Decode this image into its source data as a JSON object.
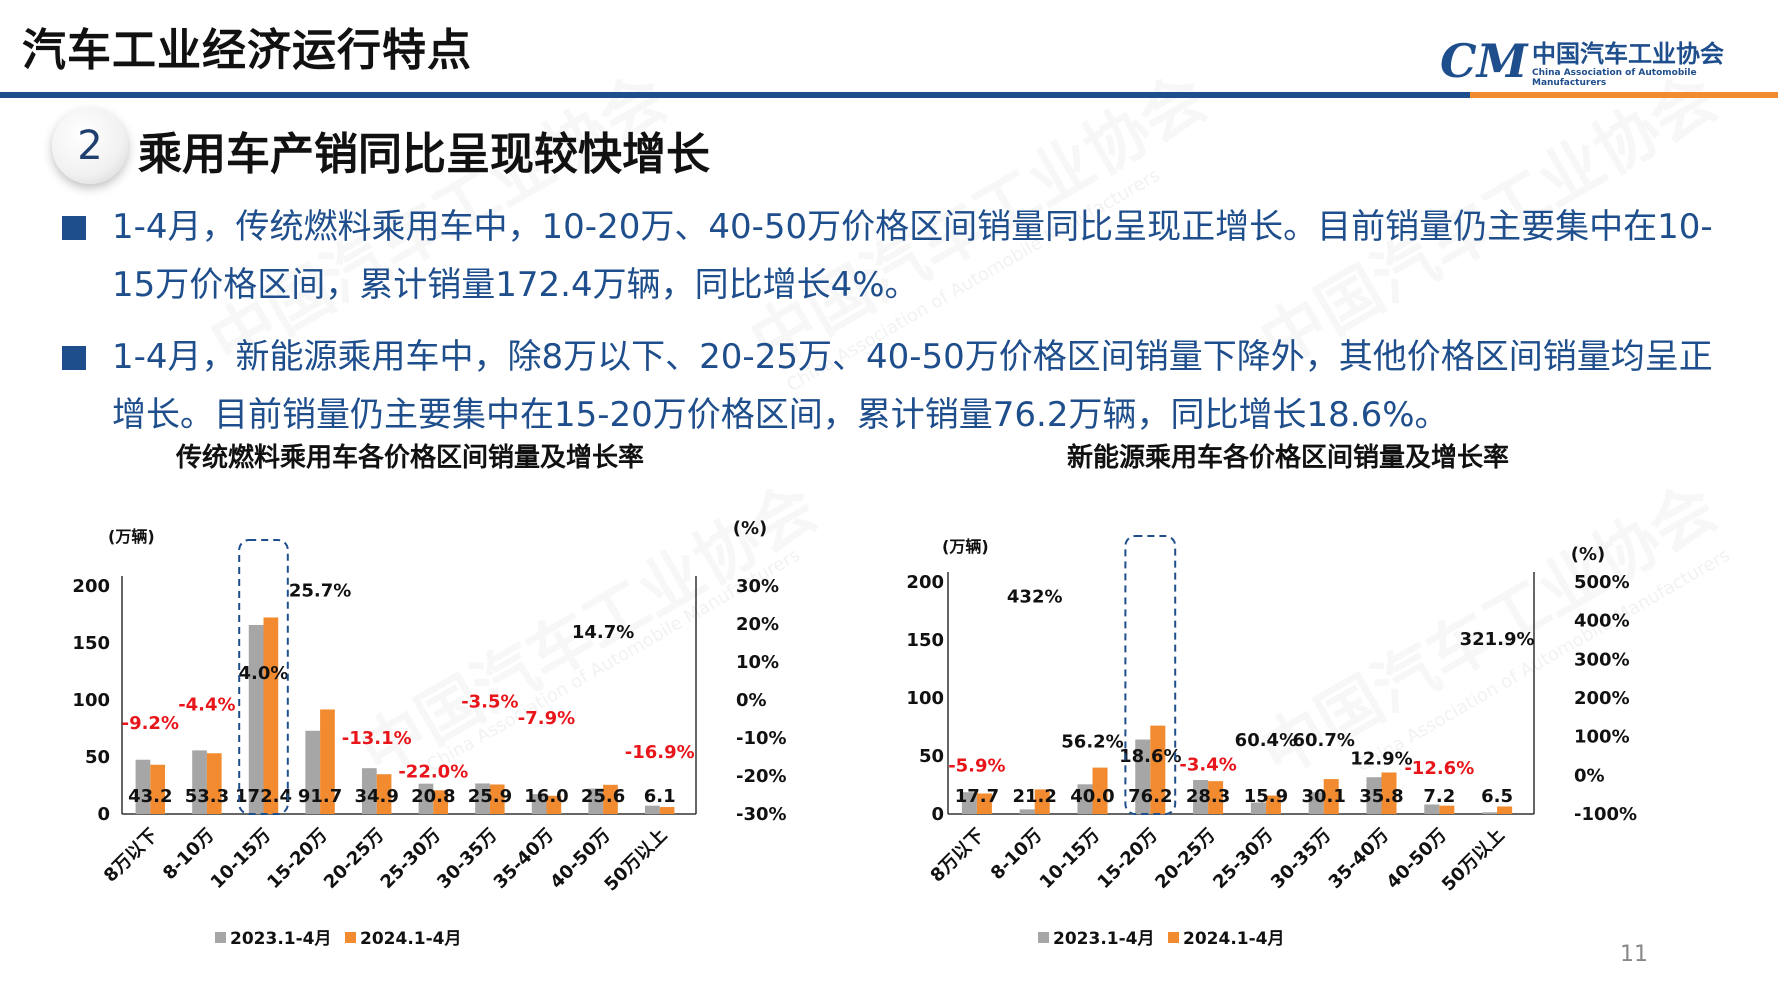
{
  "header": {
    "title": "汽车工业经济运行特点",
    "logo_mark": "CM",
    "logo_cn": "中国汽车工业协会",
    "logo_en": "China Association of Automobile Manufacturers"
  },
  "section": {
    "number": "2",
    "title": "乘用车产销同比呈现较快增长"
  },
  "bullets": [
    "1-4月，传统燃料乘用车中，10-20万、40-50万价格区间销量同比呈现正增长。目前销量仍主要集中在10-15万价格区间，累计销量172.4万辆，同比增长4%。",
    "1-4月，新能源乘用车中，除8万以下、20-25万、40-50万价格区间销量下降外，其他价格区间销量均呈正增长。目前销量仍主要集中在15-20万价格区间，累计销量76.2万辆，同比增长18.6%。"
  ],
  "page_number": "11",
  "colors": {
    "series2023": "#a6a6a6",
    "series2024": "#f28b30",
    "negative": "#e8161b",
    "positive": "#111111",
    "accent": "#1f4e8c"
  },
  "chart_data": [
    {
      "type": "bar",
      "title": "传统燃料乘用车各价格区间销量及增长率",
      "ylabel_left": "(万辆)",
      "ylabel_right": "(%)",
      "categories": [
        "8万以下",
        "8-10万",
        "10-15万",
        "15-20万",
        "20-25万",
        "25-30万",
        "30-35万",
        "35-40万",
        "40-50万",
        "50万以上"
      ],
      "series": [
        {
          "name": "2023.1-4月",
          "values": [
            47.6,
            55.8,
            165.8,
            73.0,
            40.2,
            26.6,
            26.8,
            17.4,
            22.3,
            7.3
          ]
        },
        {
          "name": "2024.1-4月",
          "values": [
            43.2,
            53.3,
            172.4,
            91.7,
            34.9,
            20.8,
            25.9,
            16.0,
            25.6,
            6.1
          ]
        }
      ],
      "value_labels": [
        "43.2",
        "53.3",
        "172.4",
        "91.7",
        "34.9",
        "20.8",
        "25.9",
        "16.0",
        "25.6",
        "6.1"
      ],
      "growth_rates": [
        -9.2,
        -4.4,
        4.0,
        25.7,
        -13.1,
        -22.0,
        -3.5,
        -7.9,
        14.7,
        -16.9
      ],
      "growth_labels": [
        "-9.2%",
        "-4.4%",
        "4.0%",
        "25.7%",
        "-13.1%",
        "-22.0%",
        "-3.5%",
        "-7.9%",
        "14.7%",
        "-16.9%"
      ],
      "y_ticks": [
        "200",
        "150",
        "100",
        "50",
        "0"
      ],
      "y2_ticks": [
        "30%",
        "20%",
        "10%",
        "0%",
        "-10%",
        "-20%",
        "-30%"
      ],
      "ylim": [
        0,
        200
      ],
      "y2lim": [
        -30,
        30
      ],
      "highlight_index": 2,
      "legend_position": "bottom"
    },
    {
      "type": "bar",
      "title": "新能源乘用车各价格区间销量及增长率",
      "ylabel_left": "(万辆)",
      "ylabel_right": "(%)",
      "categories": [
        "8万以下",
        "8-10万",
        "10-15万",
        "15-20万",
        "20-25万",
        "25-30万",
        "30-35万",
        "35-40万",
        "40-50万",
        "50万以上"
      ],
      "series": [
        {
          "name": "2023.1-4月",
          "values": [
            18.8,
            4.0,
            25.6,
            64.2,
            29.3,
            9.9,
            18.7,
            31.7,
            8.2,
            1.5
          ]
        },
        {
          "name": "2024.1-4月",
          "values": [
            17.7,
            21.2,
            40.0,
            76.2,
            28.3,
            15.9,
            30.1,
            35.8,
            7.2,
            6.5
          ]
        }
      ],
      "value_labels": [
        "17.7",
        "21.2",
        "40.0",
        "76.2",
        "28.3",
        "15.9",
        "30.1",
        "35.8",
        "7.2",
        "6.5"
      ],
      "growth_rates": [
        -5.9,
        432,
        56.2,
        18.6,
        -3.4,
        60.4,
        60.7,
        12.9,
        -12.6,
        321.9
      ],
      "growth_labels": [
        "-5.9%",
        "432%",
        "56.2%",
        "18.6%",
        "-3.4%",
        "60.4%",
        "60.7%",
        "12.9%",
        "-12.6%",
        "321.9%"
      ],
      "y_ticks": [
        "200",
        "150",
        "100",
        "50",
        "0"
      ],
      "y2_ticks": [
        "500%",
        "400%",
        "300%",
        "200%",
        "100%",
        "0%",
        "-100%"
      ],
      "ylim": [
        0,
        200
      ],
      "y2lim": [
        -100,
        500
      ],
      "highlight_index": 3,
      "legend_position": "bottom"
    }
  ]
}
